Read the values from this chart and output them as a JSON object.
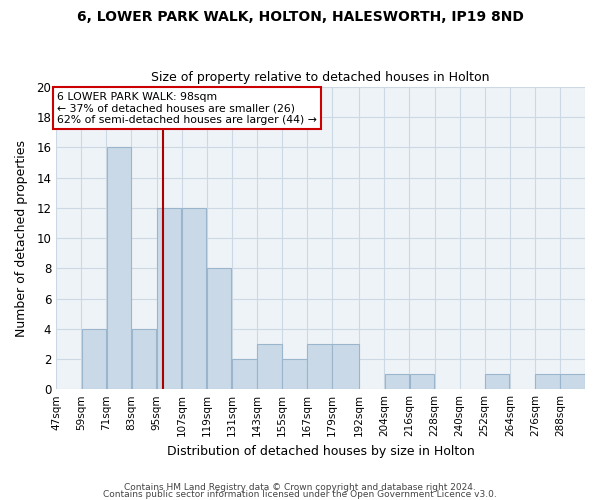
{
  "title": "6, LOWER PARK WALK, HOLTON, HALESWORTH, IP19 8ND",
  "subtitle": "Size of property relative to detached houses in Holton",
  "xlabel": "Distribution of detached houses by size in Holton",
  "ylabel": "Number of detached properties",
  "bin_left_edges": [
    47,
    59,
    71,
    83,
    95,
    107,
    119,
    131,
    143,
    155,
    167,
    179,
    192,
    204,
    216,
    228,
    240,
    252,
    264,
    276,
    288
  ],
  "bin_widths": [
    12,
    12,
    12,
    12,
    12,
    12,
    12,
    12,
    12,
    12,
    12,
    13,
    12,
    12,
    12,
    12,
    12,
    12,
    12,
    12,
    12
  ],
  "bar_heights": [
    0,
    4,
    16,
    4,
    12,
    12,
    8,
    2,
    3,
    2,
    3,
    3,
    0,
    1,
    1,
    0,
    0,
    1,
    0,
    1,
    1
  ],
  "bar_color": "#c9d9e8",
  "bar_edgecolor": "#9ab5cc",
  "vline_x": 98,
  "vline_color": "#aa0000",
  "ylim": [
    0,
    20
  ],
  "yticks": [
    0,
    2,
    4,
    6,
    8,
    10,
    12,
    14,
    16,
    18,
    20
  ],
  "xtick_labels": [
    "47sqm",
    "59sqm",
    "71sqm",
    "83sqm",
    "95sqm",
    "107sqm",
    "119sqm",
    "131sqm",
    "143sqm",
    "155sqm",
    "167sqm",
    "179sqm",
    "192sqm",
    "204sqm",
    "216sqm",
    "228sqm",
    "240sqm",
    "252sqm",
    "264sqm",
    "276sqm",
    "288sqm"
  ],
  "annotation_line1": "6 LOWER PARK WALK: 98sqm",
  "annotation_line2": "← 37% of detached houses are smaller (26)",
  "annotation_line3": "62% of semi-detached houses are larger (44) →",
  "annotation_box_edgecolor": "#cc0000",
  "footer_line1": "Contains HM Land Registry data © Crown copyright and database right 2024.",
  "footer_line2": "Contains public sector information licensed under the Open Government Licence v3.0.",
  "background_color": "#ffffff",
  "grid_color": "#ccd8e4",
  "plot_bg_color": "#eef3f8"
}
